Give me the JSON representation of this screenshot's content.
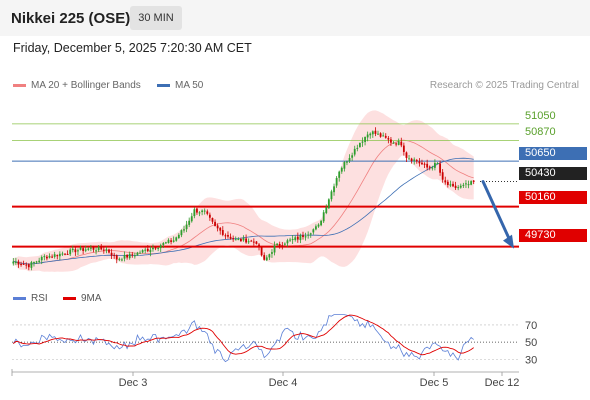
{
  "header": {
    "title": "Nikkei 225 (OSE)",
    "timeframe": "30 MIN"
  },
  "datetime": "Friday, December 5, 2025 7:20:30 AM CET",
  "legend": {
    "items": [
      {
        "label": "MA 20 + Bollinger Bands",
        "color": "#f08080"
      },
      {
        "label": "MA 50",
        "color": "#3d6fb4"
      }
    ],
    "credit": "Research © 2025 Trading Central"
  },
  "rsi_legend": {
    "items": [
      {
        "label": "RSI",
        "color": "#5b7fd6"
      },
      {
        "label": "9MA",
        "color": "#e00000"
      }
    ]
  },
  "colors": {
    "up": "#2e9e2e",
    "down": "#cc0000",
    "resistance": "#8bc34a",
    "pivot": "#3d6fb4",
    "support": "#e00000",
    "arrow": "#3566ac"
  },
  "chart_data": [
    {
      "type": "candlestick",
      "ylim": [
        49350,
        51350
      ],
      "levels": [
        {
          "value": 51050,
          "label": "51050",
          "kind": "resistance"
        },
        {
          "value": 50870,
          "label": "50870",
          "kind": "resistance"
        },
        {
          "value": 50650,
          "label": "50650",
          "kind": "pivot"
        },
        {
          "value": 50430,
          "label": "50430",
          "kind": "last"
        },
        {
          "value": 50160,
          "label": "50160",
          "kind": "support"
        },
        {
          "value": 49730,
          "label": "49730",
          "kind": "support"
        }
      ],
      "x_ticks": [
        "Dec 3",
        "Dec 4",
        "Dec 5",
        "Dec 12"
      ],
      "forecast": {
        "from": 50430,
        "to": 49730
      }
    },
    {
      "type": "line",
      "title": "RSI",
      "ylim": [
        20,
        85
      ],
      "y_ticks": [
        70,
        50,
        30
      ],
      "series": [
        {
          "name": "RSI"
        },
        {
          "name": "9MA"
        }
      ]
    }
  ]
}
